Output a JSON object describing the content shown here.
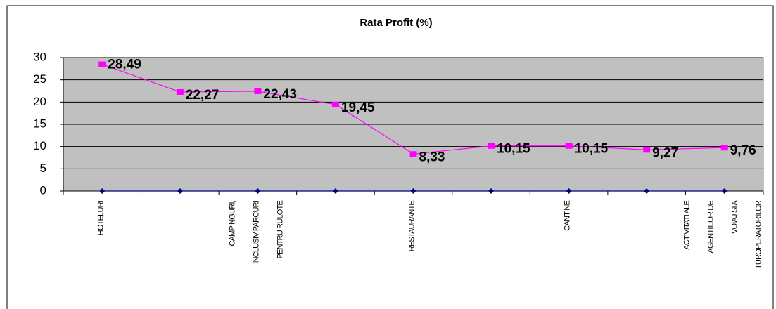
{
  "chart_data": {
    "type": "line",
    "title": "Rata Profit (%)",
    "categories": [
      "HOTELURI",
      null,
      "CAMPINGURI, INCLUSIV PARCURI PENTRU RULOTE",
      null,
      "RESTAURANTE",
      null,
      "CANTINE",
      null,
      "ACTIVITATI ALE AGENTIILOR DE VOIAJ SI A TUROPERATORILOR"
    ],
    "series": [
      {
        "color": "#ff00ff",
        "values": [
          28.49,
          22.27,
          22.43,
          19.45,
          8.33,
          10.15,
          10.15,
          9.27,
          9.76
        ],
        "value_labels": [
          "28,49",
          "22,27",
          "22,43",
          "19,45",
          "8,33",
          "10,15",
          "10,15",
          "9,27",
          "9,76"
        ]
      },
      {
        "color": "#000080",
        "values": [
          0,
          0,
          0,
          0,
          0,
          0,
          0,
          0,
          0
        ]
      }
    ],
    "ylim": [
      0,
      30
    ],
    "yticks": [
      0,
      5,
      10,
      15,
      20,
      25,
      30
    ],
    "grid": true
  }
}
